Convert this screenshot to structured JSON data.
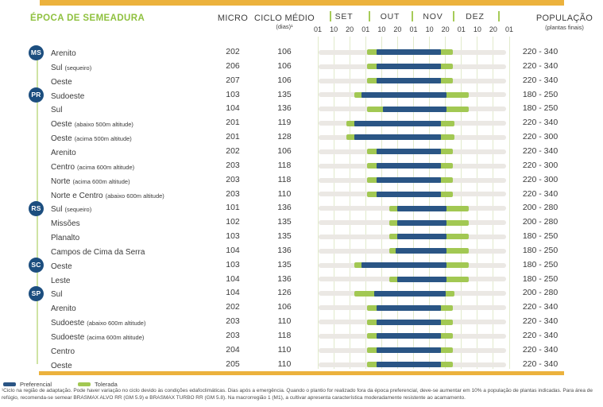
{
  "header": {
    "title": "ÉPOCA DE SEMEADURA",
    "col_micro": "MICRO",
    "col_ciclo": "CICLO MÉDIO",
    "col_ciclo_sub": "(dias)¹",
    "col_pop": "POPULAÇÃO",
    "col_pop_sub": "(plantas finais)"
  },
  "legend": {
    "preferencial": "Preferencial",
    "tolerada": "Tolerada"
  },
  "footnote": "¹Ciclo na região de adaptação. Pode haver variação no ciclo devido às condições edafoclimáticas. Dias após a emergência. Quando o plantio for realizado fora da época preferencial, deve-se aumentar em 10% a população de plantas indicadas. Para área de refúgio, recomenda-se semear BRASMAX ALVO RR (GM 5.9) e BRASMAX TURBO RR (GM 5.8). Na macrorregião 1 (M1), a cultivar apresenta característica moderadamente resistente ao acamamento.",
  "colors": {
    "accent_orange": "#ecb23d",
    "badge_navy": "#1c4e7f",
    "bar_blue": "#2a5585",
    "bar_green": "#a2c853",
    "title_green": "#8fc13f",
    "track_gray": "#ebe8e4",
    "grid_green": "#e1eacb",
    "text": "#3d3d3d"
  },
  "chart_data": {
    "type": "bar",
    "orientation": "horizontal-range",
    "title": "ÉPOCA DE SEMEADURA",
    "unit": "days after 01 SET (0 = 01 SET, 122 = 01 JAN)",
    "months": [
      "SET",
      "OUT",
      "NOV",
      "DEZ"
    ],
    "ticks": [
      "01",
      "10",
      "20",
      "01",
      "10",
      "20",
      "01",
      "10",
      "20",
      "01",
      "10",
      "20",
      "01"
    ],
    "tick_days": [
      0,
      9,
      19,
      30,
      39,
      49,
      61,
      70,
      80,
      91,
      100,
      110,
      122
    ],
    "legend_entries": [
      "Preferencial",
      "Tolerada"
    ],
    "rows": [
      {
        "state": "MS",
        "region": "Arenito",
        "sub": "",
        "micro": "202",
        "ciclo": "106",
        "pop": "220 - 340",
        "tol": [
          31,
          85
        ],
        "pref": [
          36,
          77
        ]
      },
      {
        "state": "",
        "region": "Sul",
        "sub": "(sequeiro)",
        "micro": "206",
        "ciclo": "106",
        "pop": "220 - 340",
        "tol": [
          31,
          85
        ],
        "pref": [
          36,
          77
        ]
      },
      {
        "state": "",
        "region": "Oeste",
        "sub": "",
        "micro": "207",
        "ciclo": "106",
        "pop": "220 - 340",
        "tol": [
          31,
          85
        ],
        "pref": [
          36,
          77
        ]
      },
      {
        "state": "PR",
        "region": "Sudoeste",
        "sub": "",
        "micro": "103",
        "ciclo": "135",
        "pop": "180 - 250",
        "tol": [
          22,
          95
        ],
        "pref": [
          27,
          81
        ]
      },
      {
        "state": "",
        "region": "Sul",
        "sub": "",
        "micro": "104",
        "ciclo": "136",
        "pop": "180 - 250",
        "tol": [
          31,
          95
        ],
        "pref": [
          40,
          81
        ]
      },
      {
        "state": "",
        "region": "Oeste",
        "sub": "(abaixo 500m altitude)",
        "micro": "201",
        "ciclo": "119",
        "pop": "220 - 340",
        "tol": [
          17,
          86
        ],
        "pref": [
          22,
          77
        ]
      },
      {
        "state": "",
        "region": "Oeste",
        "sub": "(acima 500m altitude)",
        "micro": "201",
        "ciclo": "128",
        "pop": "220 - 300",
        "tol": [
          17,
          86
        ],
        "pref": [
          22,
          77
        ]
      },
      {
        "state": "",
        "region": "Arenito",
        "sub": "",
        "micro": "202",
        "ciclo": "106",
        "pop": "220 - 340",
        "tol": [
          31,
          85
        ],
        "pref": [
          36,
          77
        ]
      },
      {
        "state": "",
        "region": "Centro",
        "sub": "(acima 600m altitude)",
        "micro": "203",
        "ciclo": "118",
        "pop": "220 - 300",
        "tol": [
          31,
          85
        ],
        "pref": [
          36,
          77
        ]
      },
      {
        "state": "",
        "region": "Norte",
        "sub": "(acima 600m altitude)",
        "micro": "203",
        "ciclo": "118",
        "pop": "220 - 300",
        "tol": [
          31,
          85
        ],
        "pref": [
          36,
          77
        ]
      },
      {
        "state": "",
        "region": "Norte e Centro",
        "sub": "(abaixo 600m altitude)",
        "micro": "203",
        "ciclo": "110",
        "pop": "220 - 340",
        "tol": [
          31,
          85
        ],
        "pref": [
          36,
          77
        ]
      },
      {
        "state": "RS",
        "region": "Sul",
        "sub": "(sequeiro)",
        "micro": "101",
        "ciclo": "136",
        "pop": "200 - 280",
        "tol": [
          44,
          95
        ],
        "pref": [
          49,
          81
        ]
      },
      {
        "state": "",
        "region": "Missões",
        "sub": "",
        "micro": "102",
        "ciclo": "135",
        "pop": "200 - 280",
        "tol": [
          44,
          95
        ],
        "pref": [
          49,
          81
        ]
      },
      {
        "state": "",
        "region": "Planalto",
        "sub": "",
        "micro": "103",
        "ciclo": "135",
        "pop": "180 - 250",
        "tol": [
          44,
          95
        ],
        "pref": [
          49,
          81
        ]
      },
      {
        "state": "",
        "region": "Campos de Cima da Serra",
        "sub": "",
        "micro": "104",
        "ciclo": "136",
        "pop": "180 - 250",
        "tol": [
          44,
          95
        ],
        "pref": [
          48,
          81
        ]
      },
      {
        "state": "SC",
        "region": "Oeste",
        "sub": "",
        "micro": "103",
        "ciclo": "135",
        "pop": "180 - 250",
        "tol": [
          22,
          95
        ],
        "pref": [
          27,
          81
        ]
      },
      {
        "state": "",
        "region": "Leste",
        "sub": "",
        "micro": "104",
        "ciclo": "136",
        "pop": "180 - 250",
        "tol": [
          44,
          95
        ],
        "pref": [
          49,
          81
        ]
      },
      {
        "state": "SP",
        "region": "Sul",
        "sub": "",
        "micro": "104",
        "ciclo": "126",
        "pop": "200 - 280",
        "tol": [
          22,
          86
        ],
        "pref": [
          35,
          80
        ]
      },
      {
        "state": "",
        "region": "Arenito",
        "sub": "",
        "micro": "202",
        "ciclo": "106",
        "pop": "220 - 340",
        "tol": [
          31,
          85
        ],
        "pref": [
          36,
          77
        ]
      },
      {
        "state": "",
        "region": "Sudoeste",
        "sub": "(abaixo 600m altitude)",
        "micro": "203",
        "ciclo": "110",
        "pop": "220 - 340",
        "tol": [
          31,
          85
        ],
        "pref": [
          36,
          77
        ]
      },
      {
        "state": "",
        "region": "Sudoeste",
        "sub": "(acima 600m altitude)",
        "micro": "203",
        "ciclo": "118",
        "pop": "220 - 340",
        "tol": [
          31,
          85
        ],
        "pref": [
          36,
          77
        ]
      },
      {
        "state": "",
        "region": "Centro",
        "sub": "",
        "micro": "204",
        "ciclo": "110",
        "pop": "220 - 340",
        "tol": [
          31,
          85
        ],
        "pref": [
          36,
          77
        ]
      },
      {
        "state": "",
        "region": "Oeste",
        "sub": "",
        "micro": "205",
        "ciclo": "110",
        "pop": "220 - 340",
        "tol": [
          31,
          85
        ],
        "pref": [
          36,
          77
        ]
      }
    ]
  }
}
